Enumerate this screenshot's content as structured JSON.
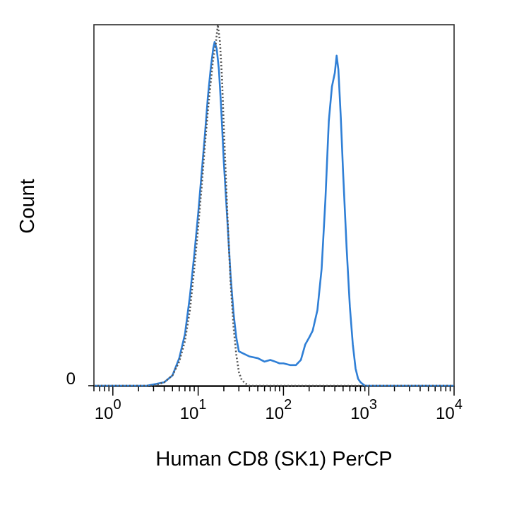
{
  "chart_data": {
    "type": "line",
    "xlabel": "Human CD8 (SK1) PerCP",
    "ylabel": "Count",
    "x_scale": "log",
    "xlim": [
      0.6,
      10000
    ],
    "ylim": [
      0,
      1.05
    ],
    "x_ticks": [
      {
        "value": 1,
        "base": "10",
        "exp": "0"
      },
      {
        "value": 10,
        "base": "10",
        "exp": "1"
      },
      {
        "value": 100,
        "base": "10",
        "exp": "2"
      },
      {
        "value": 1000,
        "base": "10",
        "exp": "3"
      },
      {
        "value": 10000,
        "base": "10",
        "exp": "4"
      }
    ],
    "y_ticks": [
      {
        "value": 0,
        "label": "0"
      }
    ],
    "grid": false,
    "legend": "none",
    "series": [
      {
        "color": "#2f7fd6",
        "style": "solid",
        "x": [
          0.6,
          2.5,
          3.2,
          4.0,
          5.0,
          6.0,
          7.0,
          8.0,
          9.0,
          10.0,
          11.0,
          12.0,
          13.0,
          14.0,
          15.0,
          15.6,
          16.5,
          17.5,
          18.5,
          20.0,
          22.0,
          24.0,
          26.0,
          28.0,
          30.0,
          33.0,
          40.0,
          50.0,
          60.0,
          70.0,
          80.0,
          90.0,
          100.0,
          120.0,
          140.0,
          160.0,
          180.0,
          200.0,
          220.0,
          250.0,
          280.0,
          310.0,
          340.0,
          370.0,
          400.0,
          420.0,
          440.0,
          470.0,
          500.0,
          550.0,
          600.0,
          650.0,
          700.0,
          750.0,
          800.0,
          900.0,
          1000.0,
          10000.0
        ],
        "y": [
          0.0,
          0.0,
          0.005,
          0.01,
          0.03,
          0.08,
          0.15,
          0.26,
          0.38,
          0.5,
          0.62,
          0.73,
          0.84,
          0.92,
          0.98,
          1.0,
          0.98,
          0.92,
          0.82,
          0.65,
          0.48,
          0.32,
          0.21,
          0.14,
          0.1,
          0.095,
          0.085,
          0.08,
          0.07,
          0.075,
          0.07,
          0.065,
          0.065,
          0.06,
          0.06,
          0.075,
          0.12,
          0.14,
          0.16,
          0.22,
          0.34,
          0.54,
          0.77,
          0.87,
          0.91,
          0.96,
          0.92,
          0.78,
          0.62,
          0.4,
          0.23,
          0.12,
          0.05,
          0.02,
          0.01,
          0.0,
          0.0,
          0.0
        ]
      },
      {
        "color": "#555555",
        "style": "dotted",
        "x": [
          0.6,
          3.0,
          4.0,
          5.0,
          6.0,
          7.0,
          8.0,
          9.0,
          10.0,
          11.0,
          12.0,
          13.0,
          14.0,
          15.0,
          16.0,
          17.0,
          18.0,
          19.0,
          20.0,
          22.0,
          24.0,
          26.0,
          28.0,
          30.0,
          32.0,
          35.0,
          40.0,
          50.0,
          10000.0
        ],
        "y": [
          0.0,
          0.0,
          0.01,
          0.03,
          0.07,
          0.13,
          0.22,
          0.34,
          0.46,
          0.58,
          0.7,
          0.8,
          0.88,
          0.95,
          0.99,
          1.05,
          1.0,
          0.9,
          0.75,
          0.5,
          0.3,
          0.17,
          0.09,
          0.04,
          0.02,
          0.008,
          0.0,
          0.0,
          0.0
        ]
      }
    ]
  }
}
